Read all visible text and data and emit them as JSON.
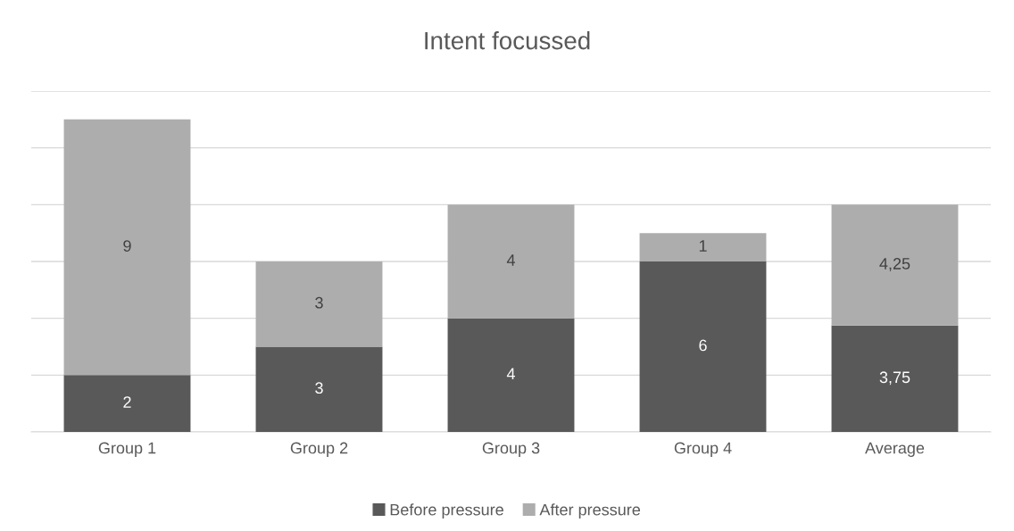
{
  "chart_data": {
    "type": "bar",
    "title": "Intent focussed",
    "stacked": true,
    "categories": [
      "Group 1",
      "Group 2",
      "Group 3",
      "Group 4",
      "Average"
    ],
    "series": [
      {
        "name": "Before pressure",
        "color": "#595959",
        "values": [
          2,
          3,
          4,
          6,
          3.75
        ],
        "value_labels": [
          "2",
          "3",
          "4",
          "6",
          "3,75"
        ]
      },
      {
        "name": "After pressure",
        "color": "#adadad",
        "values": [
          9,
          3,
          4,
          1,
          4.25
        ],
        "value_labels": [
          "9",
          "3",
          "4",
          "1",
          "4,25"
        ]
      }
    ],
    "ylim": [
      0,
      12
    ],
    "yticks": [
      0,
      2,
      4,
      6,
      8,
      10,
      12
    ],
    "tick_labels": "x",
    "grid": "y",
    "legend": "bottom"
  }
}
